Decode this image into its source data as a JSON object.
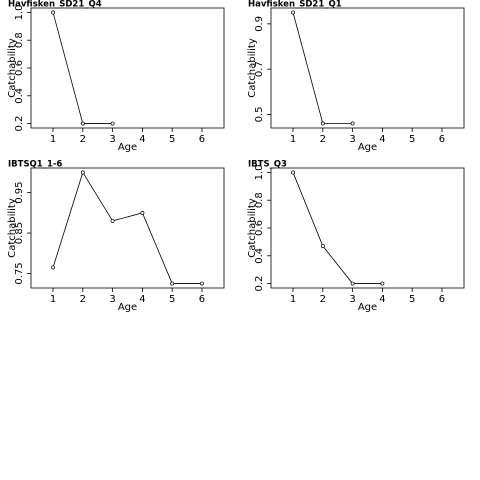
{
  "chart_data": [
    {
      "type": "line",
      "title": "Havfisken_SD21_Q4",
      "xlabel": "Age",
      "ylabel": "Catchability",
      "x": [
        1,
        2,
        3
      ],
      "values": [
        1.0,
        0.2,
        0.2
      ],
      "xlim": [
        0.26,
        6.74
      ],
      "ylim": [
        0.168,
        1.032
      ],
      "xticks": [
        1,
        2,
        3,
        4,
        5,
        6
      ],
      "yticks": [
        0.2,
        0.4,
        0.6,
        0.8,
        {
          "value": 1,
          "label": "1.0"
        }
      ],
      "color": "#000000"
    },
    {
      "type": "line",
      "title": "Havfisken_SD21_Q1",
      "xlabel": "Age",
      "ylabel": "Catchability",
      "x": [
        1,
        2,
        3
      ],
      "values": [
        0.95,
        0.46,
        0.46
      ],
      "xlim": [
        0.26,
        6.74
      ],
      "ylim": [
        0.44,
        0.97
      ],
      "xticks": [
        1,
        2,
        3,
        4,
        5,
        6
      ],
      "yticks": [
        0.5,
        0.7,
        0.9
      ],
      "color": "#000000"
    },
    {
      "type": "line",
      "title": "IBTSQ1_1-6",
      "xlabel": "Age",
      "ylabel": "Catchability",
      "x": [
        1,
        2,
        3,
        4,
        5,
        6
      ],
      "values": [
        0.765,
        1.0,
        0.88,
        0.9,
        0.725,
        0.725
      ],
      "xlim": [
        0.26,
        6.74
      ],
      "ylim": [
        0.714,
        1.011
      ],
      "xticks": [
        1,
        2,
        3,
        4,
        5,
        6
      ],
      "yticks": [
        0.75,
        0.85,
        0.95
      ],
      "color": "#000000"
    },
    {
      "type": "line",
      "title": "IBTS_Q3",
      "xlabel": "Age",
      "ylabel": "Catchability",
      "x": [
        1,
        2,
        3,
        4
      ],
      "values": [
        1.0,
        0.47,
        0.2,
        0.2
      ],
      "xlim": [
        0.26,
        6.74
      ],
      "ylim": [
        0.168,
        1.032
      ],
      "xticks": [
        1,
        2,
        3,
        4,
        5,
        6
      ],
      "yticks": [
        0.2,
        0.4,
        0.6,
        0.8,
        {
          "value": 1,
          "label": "1.0"
        }
      ],
      "color": "#000000"
    }
  ]
}
